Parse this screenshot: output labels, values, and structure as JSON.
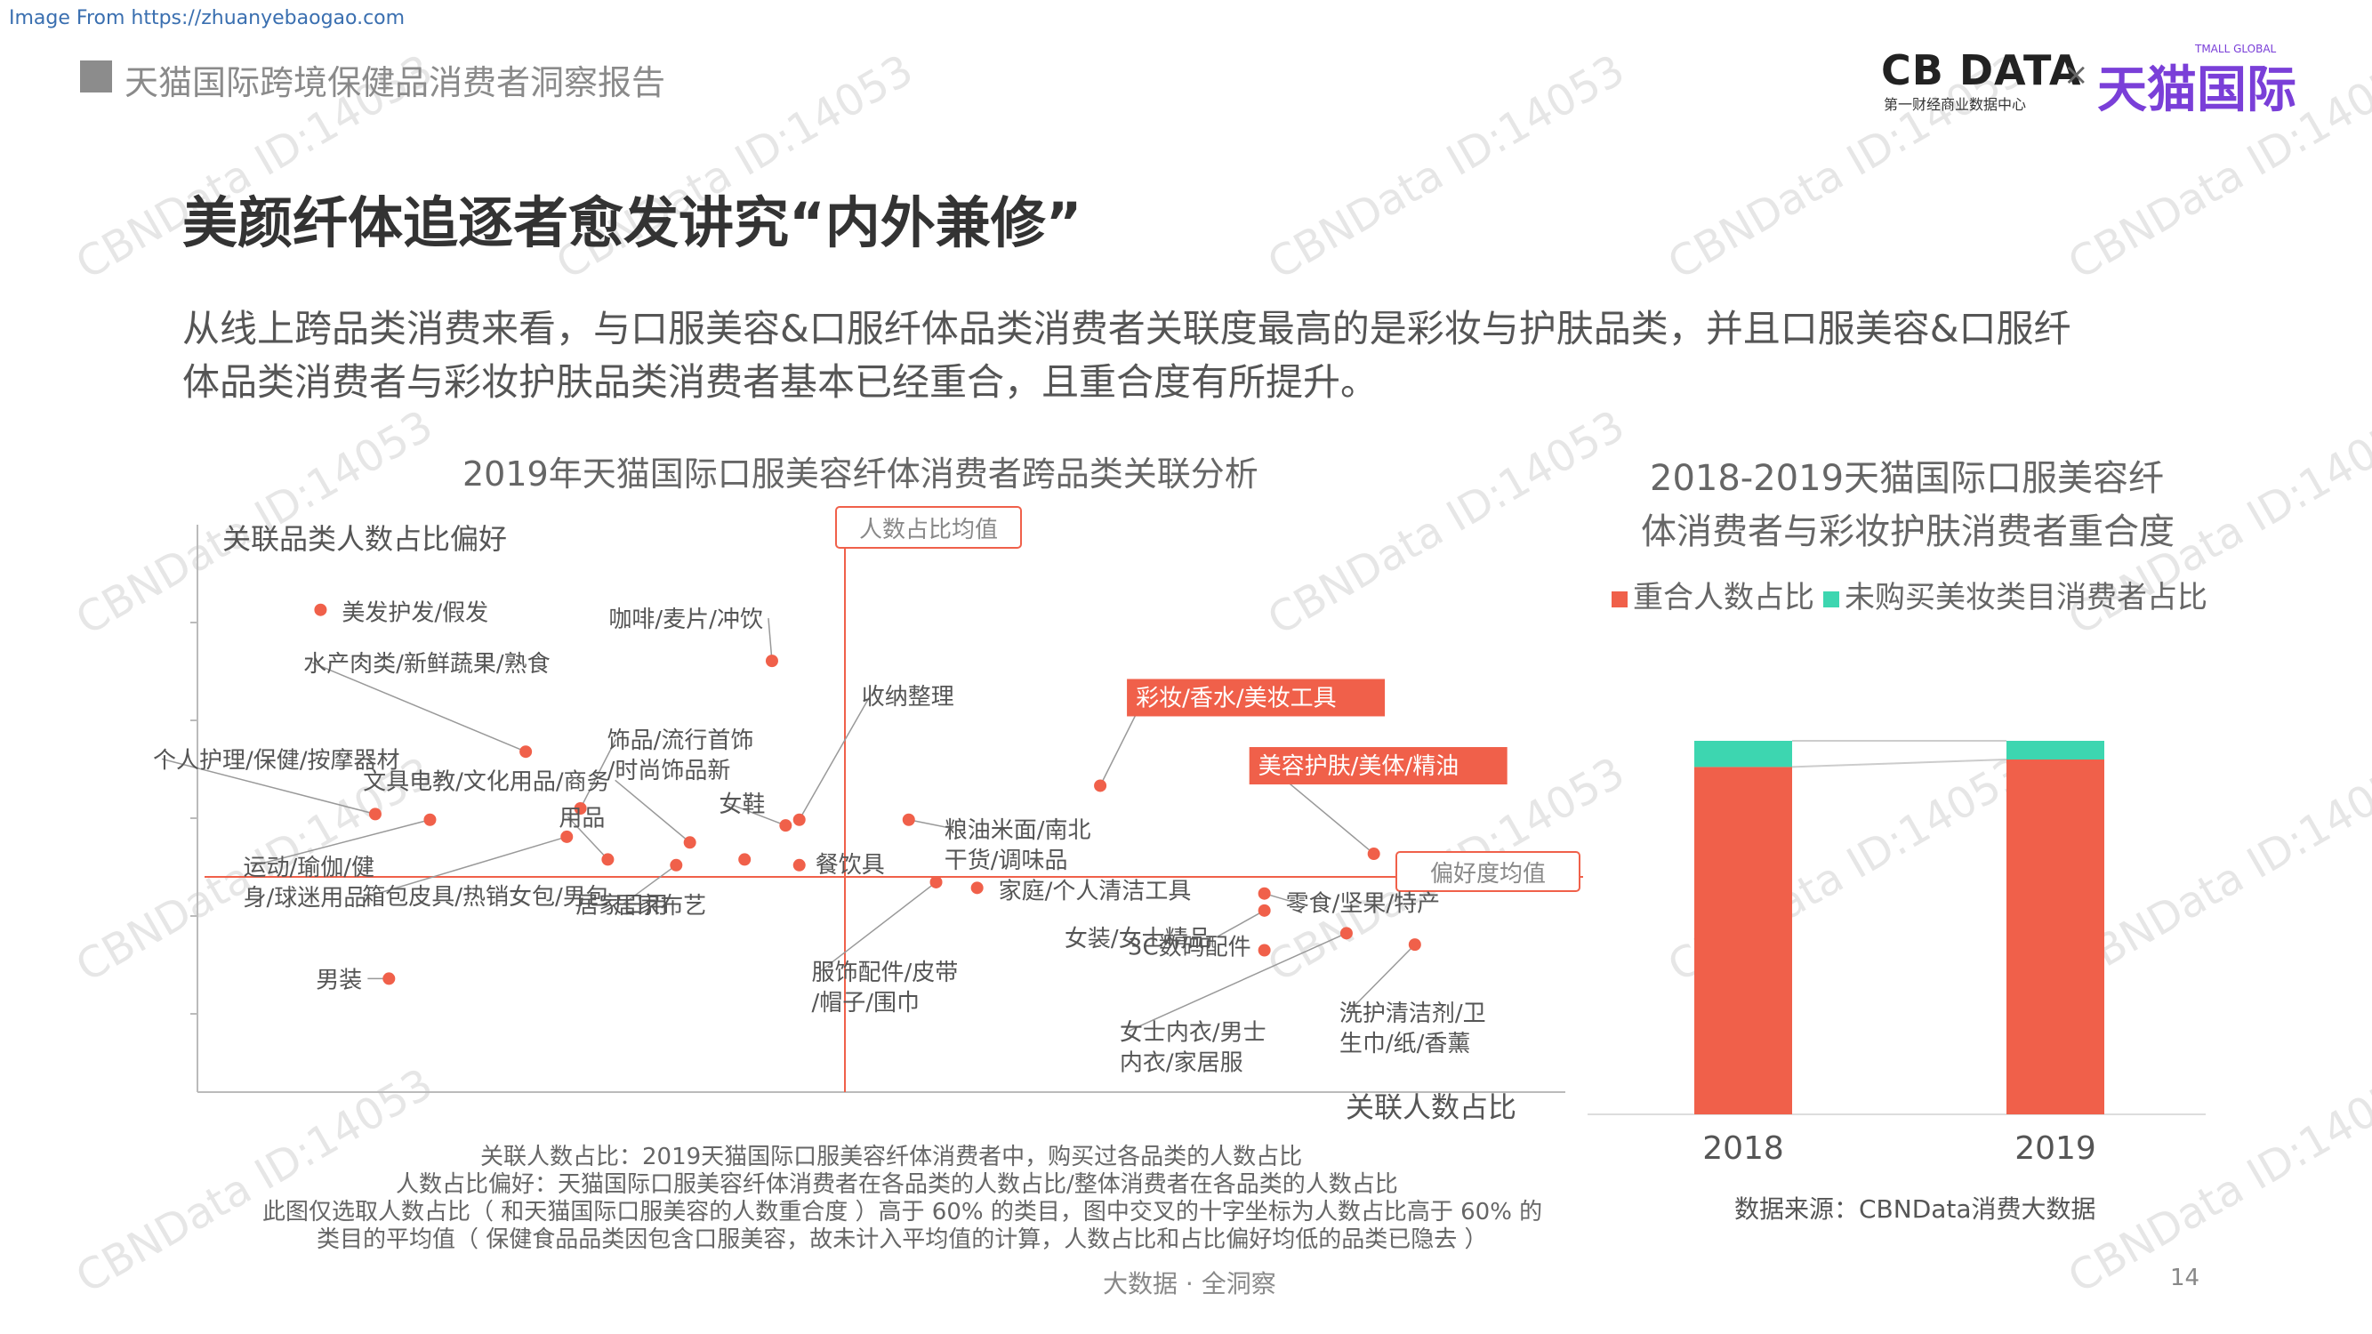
{
  "source_url": "Image From https://zhuanyebaogao.com",
  "header": {
    "report_title": "天猫国际跨境保健品消费者洞察报告",
    "logo_cbn": "CB DATA",
    "logo_cbn_sub": "第一财经商业数据中心",
    "logo_x": "×",
    "logo_tmall": "天猫国际",
    "logo_tmall_en": "TMALL GLOBAL"
  },
  "main_title": "美颜纤体追逐者愈发讲究“内外兼修”",
  "description": {
    "line1": "从线上跨品类消费来看，与口服美容&口服纤体品类消费者关联度最高的是彩妆与护肤品类，并且口服美容&口服纤",
    "line2": "体品类消费者与彩妆护肤品类消费者基本已经重合，且重合度有所提升。"
  },
  "watermark": "CBNData ID:14053",
  "chart_data": [
    {
      "type": "scatter",
      "title": "2019年天猫国际口服美容纤体消费者跨品类关联分析",
      "xlabel": "关联人数占比",
      "ylabel": "关联品类人数占比偏好",
      "vline_label": "人数占比均值",
      "hline_label": "偏好度均值",
      "color": "#f0604a",
      "points": [
        {
          "label": "美发护发/假发",
          "x": 0.09,
          "y": 0.85
        },
        {
          "label": "咖啡/麦片/冲饮",
          "x": 0.42,
          "y": 0.76
        },
        {
          "label": "水产肉类/新鲜蔬果/熟食",
          "x": 0.24,
          "y": 0.6
        },
        {
          "label": "饰品/流行首饰/时尚饰品新",
          "x": 0.28,
          "y": 0.5
        },
        {
          "label": "收纳整理",
          "x": 0.44,
          "y": 0.48
        },
        {
          "label": "个人护理/保健/按摩器材",
          "x": 0.13,
          "y": 0.49
        },
        {
          "label": "文具电教/文化用品/商务",
          "x": 0.36,
          "y": 0.44
        },
        {
          "label": "用品",
          "x": 0.3,
          "y": 0.41
        },
        {
          "label": "女鞋",
          "x": 0.43,
          "y": 0.47
        },
        {
          "label": "运动/瑜伽/健身/球迷用品",
          "x": 0.17,
          "y": 0.48
        },
        {
          "label": "箱包皮具/热销女包/男包",
          "x": 0.27,
          "y": 0.45
        },
        {
          "label": "居家布艺",
          "x": 0.35,
          "y": 0.4
        },
        {
          "label": "餐饮具",
          "x": 0.44,
          "y": 0.4
        },
        {
          "label": "粮油米面/南北干货/调味品",
          "x": 0.52,
          "y": 0.48
        },
        {
          "label": "彩妆/香水/美妆工具",
          "x": 0.66,
          "y": 0.54
        },
        {
          "label": "美容护肤/美体/精油",
          "x": 0.86,
          "y": 0.42
        },
        {
          "label": "居家日用",
          "x": 0.4,
          "y": 0.41
        },
        {
          "label": "家庭/个人清洁工具",
          "x": 0.57,
          "y": 0.36
        },
        {
          "label": "零食/坚果/特产",
          "x": 0.78,
          "y": 0.35
        },
        {
          "label": "女装/女士精品",
          "x": 0.78,
          "y": 0.32
        },
        {
          "label": "服饰配件/皮带/帽子/围巾",
          "x": 0.54,
          "y": 0.37
        },
        {
          "label": "3C数码配件",
          "x": 0.78,
          "y": 0.25
        },
        {
          "label": "洗护清洁剂/卫生巾/纸/香薰",
          "x": 0.89,
          "y": 0.26
        },
        {
          "label": "女士内衣/男士内衣/家居服",
          "x": 0.84,
          "y": 0.28
        },
        {
          "label": "男装",
          "x": 0.14,
          "y": 0.2
        }
      ],
      "notes": [
        "关联人数占比：2019天猫国际口服美容纤体消费者中，购买过各品类的人数占比",
        "人数占比偏好：天猫国际口服美容纤体消费者在各品类的人数占比/整体消费者在各品类的人数占比",
        "此图仅选取人数占比（ 和天猫国际口服美容的人数重合度 ）高于 60% 的类目，图中交叉的十字坐标为人数占比高于 60% 的",
        "类目的平均值（ 保健食品品类因包含口服美容，故未计入平均值的计算，人数占比和占比偏好均低的品类已隐去 ）"
      ]
    },
    {
      "type": "bar",
      "stacked": true,
      "title_line1": "2018-2019天猫国际口服美容纤",
      "title_line2": "体消费者与彩妆护肤消费者重合度",
      "categories": [
        "2018",
        "2019"
      ],
      "series": [
        {
          "name": "重合人数占比",
          "color": "#f0604a",
          "values": [
            93,
            95
          ]
        },
        {
          "name": "未购买美妆类目消费者占比",
          "color": "#3dd6b0",
          "values": [
            7,
            5
          ]
        }
      ],
      "ylim": [
        0,
        100
      ],
      "source": "数据来源：CBNData消费大数据"
    }
  ],
  "footer": {
    "text": "大数据 · 全洞察",
    "page": "14"
  }
}
